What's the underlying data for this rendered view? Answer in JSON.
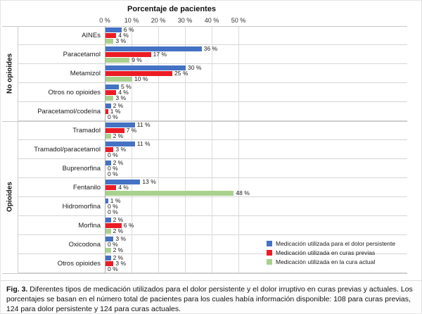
{
  "chart_data": {
    "type": "bar",
    "orientation": "horizontal",
    "title": "Porcentaje de pacientes",
    "x_ticks": [
      "0 %",
      "10 %",
      "20 %",
      "30 %",
      "40 %",
      "50 %"
    ],
    "x_tick_step_percent": 10,
    "value_suffix": " %",
    "grid": true,
    "legend_position": "bottom-right",
    "groups": [
      {
        "label": "No opioides",
        "count": 5
      },
      {
        "label": "Opioides",
        "count": 8
      }
    ],
    "categories": [
      "AINEs",
      "Paracetamol",
      "Metamizol",
      "Otros no opioides",
      "Paracetamol/codeína",
      "Tramadol",
      "Tramadol/paracetamol",
      "Buprenorfina",
      "Fentanilo",
      "Hidromorfina",
      "Morfina",
      "Oxicodona",
      "Otros opioides"
    ],
    "series": [
      {
        "name": "Medicación utilizada para el dolor persistente",
        "color": "#4472C4",
        "values": [
          6,
          36,
          30,
          5,
          2,
          11,
          11,
          2,
          13,
          1,
          2,
          3,
          2
        ]
      },
      {
        "name": "Medicación utilizada en curas previas",
        "color": "#EC1C24",
        "values": [
          4,
          17,
          25,
          4,
          1,
          7,
          3,
          0,
          4,
          0,
          6,
          0,
          3
        ]
      },
      {
        "name": "Medicación utilizada en la cura actual",
        "color": "#A9D18E",
        "values": [
          3,
          9,
          10,
          3,
          0,
          2,
          0,
          0,
          48,
          0,
          2,
          2,
          0
        ]
      }
    ]
  },
  "caption": {
    "fig_label": "Fig. 3.",
    "text": "Diferentes tipos de medicación utilizados para el dolor persistente y el dolor irruptivo en curas previas y actuales. Los porcentajes se basan en el número total de pacientes para los cuales había información disponible: 108 para curas previas, 124 para dolor persistente y 124 para curas actuales."
  }
}
